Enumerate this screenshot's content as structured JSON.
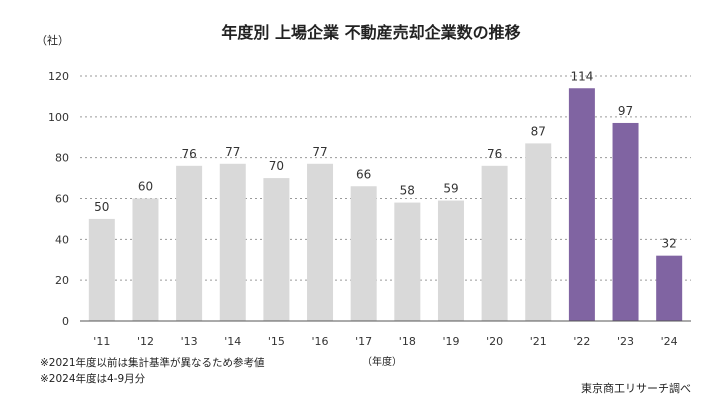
{
  "chart_data": {
    "type": "bar",
    "title": "年度別 上場企業 不動産売却企業数の推移",
    "ylabel": "（社）",
    "xlabel": "（年度）",
    "ylim": [
      0,
      120
    ],
    "yticks": [
      0,
      20,
      40,
      60,
      80,
      100,
      120
    ],
    "grid": true,
    "categories": [
      "'11",
      "'12",
      "'13",
      "'14",
      "'15",
      "'16",
      "'17",
      "'18",
      "'19",
      "'20",
      "'21",
      "'22",
      "'23",
      "'24"
    ],
    "values": [
      50,
      60,
      76,
      77,
      70,
      77,
      66,
      58,
      59,
      76,
      87,
      114,
      97,
      32
    ],
    "bar_colors": [
      "#d9d9d9",
      "#d9d9d9",
      "#d9d9d9",
      "#d9d9d9",
      "#d9d9d9",
      "#d9d9d9",
      "#d9d9d9",
      "#d9d9d9",
      "#d9d9d9",
      "#d9d9d9",
      "#d9d9d9",
      "#8064a2",
      "#8064a2",
      "#8064a2"
    ],
    "data_labels": [
      "50",
      "60",
      "76",
      "77",
      "70",
      "77",
      "66",
      "58",
      "59",
      "76",
      "87",
      "114",
      "97",
      "32"
    ],
    "notes": [
      "※2021年度以前は集計基準が異なるため参考値",
      "※2024年度は4-9月分"
    ],
    "source": "東京商工リサーチ調べ"
  }
}
